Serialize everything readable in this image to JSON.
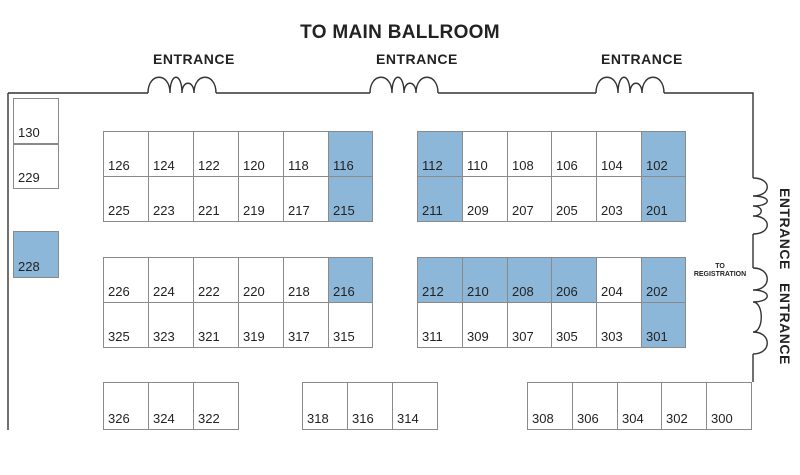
{
  "title": "TO MAIN BALLROOM",
  "entrances": {
    "top": [
      "ENTRANCE",
      "ENTRANCE",
      "ENTRANCE"
    ],
    "right": [
      "ENTRANCE",
      "ENTRANCE"
    ]
  },
  "registration": [
    "TO",
    "REGISTRATION"
  ],
  "highlight_color": "#8db7d8",
  "booths": {
    "b130": "130",
    "b229": "229",
    "b228": "228",
    "b126": "126",
    "b124": "124",
    "b122": "122",
    "b120": "120",
    "b118": "118",
    "b116": "116",
    "b225": "225",
    "b223": "223",
    "b221": "221",
    "b219": "219",
    "b217": "217",
    "b215": "215",
    "b112": "112",
    "b110": "110",
    "b108": "108",
    "b106": "106",
    "b104": "104",
    "b102": "102",
    "b211": "211",
    "b209": "209",
    "b207": "207",
    "b205": "205",
    "b203": "203",
    "b201": "201",
    "b226": "226",
    "b224": "224",
    "b222": "222",
    "b220": "220",
    "b218": "218",
    "b216": "216",
    "b325": "325",
    "b323": "323",
    "b321": "321",
    "b319": "319",
    "b317": "317",
    "b315": "315",
    "b212": "212",
    "b210": "210",
    "b208": "208",
    "b206": "206",
    "b204": "204",
    "b202": "202",
    "b311": "311",
    "b309": "309",
    "b307": "307",
    "b305": "305",
    "b303": "303",
    "b301": "301",
    "b326": "326",
    "b324": "324",
    "b322": "322",
    "b318": "318",
    "b316": "316",
    "b314": "314",
    "b308": "308",
    "b306": "306",
    "b304": "304",
    "b302": "302",
    "b300": "300"
  },
  "highlighted_booths": [
    "228",
    "116",
    "215",
    "112",
    "211",
    "102",
    "201",
    "216",
    "212",
    "210",
    "208",
    "206",
    "202",
    "301"
  ]
}
